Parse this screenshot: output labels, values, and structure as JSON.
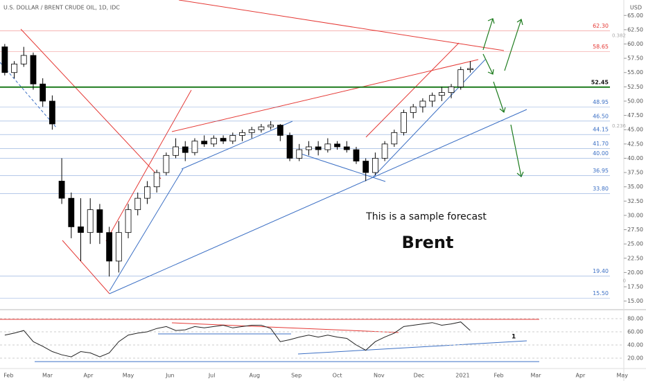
{
  "chart_data": {
    "type": "candlestick",
    "title": "U.S. DOLLAR / BRENT CRUDE OIL, 1D, IDC",
    "currency": "USD",
    "annotations": [
      "This is a sample forecast",
      "Brent"
    ],
    "candles": {
      "open": [
        59.5,
        55,
        56.5,
        58,
        53,
        50,
        36,
        33,
        28,
        27,
        31,
        27,
        22,
        27,
        31,
        33,
        35,
        37.5,
        40.5,
        42,
        41,
        43,
        42.5,
        43.5,
        43,
        44,
        44.5,
        45,
        45.5,
        45.8,
        44,
        40,
        41.5,
        42,
        41.5,
        42.5,
        42,
        41.5,
        39.5,
        37.5,
        40,
        42.5,
        44.5,
        48,
        49,
        50,
        51,
        51.5,
        52.5,
        55.5
      ],
      "high": [
        60,
        57,
        59.5,
        58.5,
        54,
        51,
        40,
        34,
        33,
        33,
        32,
        28,
        29,
        32,
        34,
        36,
        38,
        41,
        43.5,
        43,
        43.5,
        44,
        44,
        44,
        44.5,
        45,
        45.5,
        46,
        46.5,
        46,
        44.5,
        42.5,
        43,
        43,
        43.5,
        43,
        43,
        42,
        40,
        41,
        43,
        45,
        48.5,
        49.5,
        50.5,
        51.5,
        52.5,
        53,
        56,
        57
      ],
      "low": [
        54.5,
        54,
        56,
        52,
        49,
        45,
        32,
        26,
        22,
        25,
        25,
        19.3,
        20,
        26,
        30,
        32,
        34,
        37,
        40,
        39.5,
        40.5,
        42,
        42,
        42.5,
        42.5,
        43,
        43.5,
        44.5,
        45,
        43,
        39.5,
        39.5,
        40.5,
        40.5,
        41,
        41.5,
        41,
        39,
        36,
        37,
        39.5,
        42,
        44,
        47,
        48,
        49,
        50,
        50.5,
        52,
        55
      ],
      "close": [
        55,
        56.5,
        58,
        53,
        50,
        46,
        33,
        28,
        27,
        31,
        27,
        22,
        27,
        31,
        33,
        35,
        37.5,
        40.5,
        42,
        41,
        43,
        42.5,
        43.5,
        43,
        44,
        44.5,
        45,
        45.5,
        45.8,
        44,
        40,
        41.5,
        42,
        41.5,
        42.5,
        42,
        41.5,
        39.5,
        37.5,
        40,
        42.5,
        44.5,
        48,
        49,
        50,
        51,
        51.5,
        52.5,
        55.5,
        55.7
      ],
      "up_color": "#ffffff",
      "down_color": "#000000"
    },
    "xlim": [
      -0.5,
      67.5
    ],
    "xticks": [
      {
        "value": 0.4,
        "label": "Feb"
      },
      {
        "value": 4.5,
        "label": "Mar"
      },
      {
        "value": 8.8,
        "label": "Apr"
      },
      {
        "value": 13,
        "label": "May"
      },
      {
        "value": 17.4,
        "label": "Jun"
      },
      {
        "value": 21.8,
        "label": "Jul"
      },
      {
        "value": 26.3,
        "label": "Aug"
      },
      {
        "value": 30.7,
        "label": "Sep"
      },
      {
        "value": 35,
        "label": "Oct"
      },
      {
        "value": 39.4,
        "label": "Nov"
      },
      {
        "value": 43.6,
        "label": "Dec"
      },
      {
        "value": 48.2,
        "label": "2021"
      },
      {
        "value": 52,
        "label": "Feb"
      },
      {
        "value": 55.9,
        "label": "Mar"
      },
      {
        "value": 60.6,
        "label": "Apr"
      },
      {
        "value": 65,
        "label": "May"
      }
    ],
    "ylim": [
      13.5,
      67.7
    ],
    "yticks": [
      {
        "value": 65,
        "label": "65.00"
      },
      {
        "value": 62.5,
        "label": "62.50"
      },
      {
        "value": 60,
        "label": "60.00"
      },
      {
        "value": 57.5,
        "label": "57.50"
      },
      {
        "value": 55,
        "label": "55.00"
      },
      {
        "value": 52.5,
        "label": "52.50"
      },
      {
        "value": 50,
        "label": "50.00"
      },
      {
        "value": 47.5,
        "label": "47.50"
      },
      {
        "value": 45,
        "label": "45.00"
      },
      {
        "value": 42.5,
        "label": "42.50"
      },
      {
        "value": 40,
        "label": "40.00"
      },
      {
        "value": 37.5,
        "label": "37.50"
      },
      {
        "value": 35,
        "label": "35.00"
      },
      {
        "value": 32.5,
        "label": "32.50"
      },
      {
        "value": 30,
        "label": "30.00"
      },
      {
        "value": 27.5,
        "label": "27.50"
      },
      {
        "value": 25,
        "label": "25.00"
      },
      {
        "value": 22.5,
        "label": "22.50"
      },
      {
        "value": 20,
        "label": "20.00"
      },
      {
        "value": 17.5,
        "label": "17.50"
      },
      {
        "value": 15,
        "label": "15.00"
      }
    ],
    "grid": false,
    "levels": [
      {
        "value": 62.3,
        "label": "62.30",
        "color": "#e53935"
      },
      {
        "value": 58.65,
        "label": "58.65",
        "color": "#e53935"
      },
      {
        "value": 52.45,
        "label": "52.45",
        "color": "#1b7a1b"
      },
      {
        "value": 48.95,
        "label": "48.95",
        "color": "#3b6fc4"
      },
      {
        "value": 46.5,
        "label": "46.50",
        "color": "#3b6fc4"
      },
      {
        "value": 44.15,
        "label": "44.15",
        "color": "#3b6fc4"
      },
      {
        "value": 41.7,
        "label": "41.70",
        "color": "#3b6fc4"
      },
      {
        "value": 40,
        "label": "40.00",
        "color": "#3b6fc4"
      },
      {
        "value": 36.95,
        "label": "36.95",
        "color": "#3b6fc4"
      },
      {
        "value": 33.8,
        "label": "33.80",
        "color": "#3b6fc4"
      },
      {
        "value": 19.4,
        "label": "19.40",
        "color": "#3b6fc4"
      },
      {
        "value": 15.5,
        "label": "15.50",
        "color": "#3b6fc4"
      }
    ],
    "fib": [
      {
        "level": 62.3,
        "label": "0.382"
      },
      {
        "level": 46.5,
        "label": "0.236"
      },
      {
        "level": 19.4,
        "label": "0"
      }
    ],
    "rsi": {
      "values": [
        55,
        58,
        62,
        45,
        38,
        30,
        25,
        22,
        30,
        28,
        22,
        28,
        45,
        55,
        58,
        60,
        65,
        68,
        62,
        63,
        68,
        66,
        68,
        70,
        66,
        68,
        70,
        70,
        65,
        45,
        48,
        52,
        55,
        52,
        55,
        52,
        50,
        40,
        32,
        45,
        52,
        58,
        68,
        70,
        72,
        74,
        70,
        72,
        75,
        62
      ],
      "color": "#222222",
      "ylim": [
        6.3,
        88.4
      ],
      "yticks": [
        {
          "value": 80,
          "label": "80.00"
        },
        {
          "value": 60,
          "label": "60.00"
        },
        {
          "value": 40,
          "label": "40.00"
        },
        {
          "value": 20,
          "label": "20.00"
        }
      ],
      "note": "1"
    }
  }
}
